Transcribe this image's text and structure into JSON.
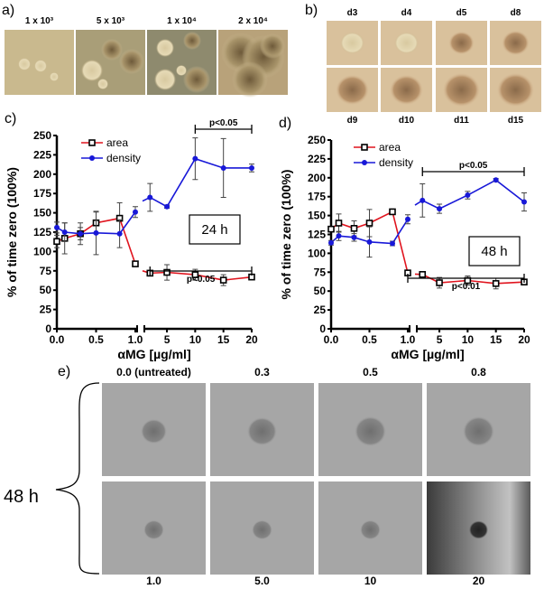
{
  "panel_a": {
    "label": "a)",
    "images": [
      "1 x 10³",
      "5 x 10³",
      "1 x 10⁴",
      "2 x 10⁴"
    ]
  },
  "panel_b": {
    "label": "b)",
    "images_top": [
      "d3",
      "d4",
      "d5",
      "d8"
    ],
    "images_bottom": [
      "d9",
      "d10",
      "d11",
      "d15"
    ]
  },
  "panel_e": {
    "label": "e)",
    "side_label": "48 h",
    "top_labels": [
      "0.0 (untreated)",
      "0.3",
      "0.5",
      "0.8"
    ],
    "bottom_labels": [
      "1.0",
      "5.0",
      "10",
      "20"
    ]
  },
  "colors": {
    "area": "#e0141e",
    "density": "#1818d8"
  },
  "chart_data": [
    {
      "type": "line",
      "panel_label": "c)",
      "box_label": "24 h",
      "xlabel": "αMG [µg/ml]",
      "ylabel": "% of time zero (100%)",
      "ylim": [
        0,
        250
      ],
      "yticks": [
        0,
        25,
        50,
        75,
        100,
        125,
        150,
        175,
        200,
        225,
        250
      ],
      "x_axis_broken": true,
      "xticks_left": [
        "0.0",
        "0.5",
        "1.0"
      ],
      "xticks_right": [
        "5",
        "10",
        "15",
        "20"
      ],
      "legend": "top-left",
      "x": [
        0,
        0.1,
        0.3,
        0.5,
        0.8,
        1.0,
        2,
        5,
        10,
        15,
        20
      ],
      "series": [
        {
          "name": "area",
          "marker": "square",
          "values": [
            113,
            117,
            123,
            137,
            143,
            84,
            72,
            73,
            70,
            63,
            67
          ],
          "error": [
            8,
            20,
            14,
            14,
            20,
            2,
            3,
            10,
            7,
            7,
            2
          ]
        },
        {
          "name": "density",
          "marker": "circle",
          "values": [
            131,
            125,
            123,
            124,
            123,
            151,
            170,
            158,
            220,
            208,
            208
          ],
          "error": [
            7,
            12,
            8,
            28,
            18,
            7,
            18,
            2,
            27,
            38,
            5
          ]
        }
      ],
      "significance": [
        {
          "label": "p<0.05",
          "from": 10,
          "to": 20,
          "series": "density"
        },
        {
          "label": "p<0.05",
          "from": 2,
          "to": 20,
          "series": "area"
        }
      ]
    },
    {
      "type": "line",
      "panel_label": "d)",
      "box_label": "48 h",
      "xlabel": "αMG [µg/ml]",
      "ylabel": "% of time zero (100%)",
      "ylim": [
        0,
        250
      ],
      "yticks": [
        0,
        25,
        50,
        75,
        100,
        125,
        150,
        175,
        200,
        225,
        250
      ],
      "x_axis_broken": true,
      "xticks_left": [
        "0.0",
        "0.5",
        "1.0"
      ],
      "xticks_right": [
        "5",
        "10",
        "15",
        "20"
      ],
      "legend": "top-left",
      "x": [
        0,
        0.1,
        0.3,
        0.5,
        0.8,
        1.0,
        2,
        5,
        10,
        15,
        20
      ],
      "series": [
        {
          "name": "area",
          "marker": "square",
          "values": [
            132,
            140,
            133,
            140,
            155,
            74,
            72,
            61,
            64,
            60,
            62
          ],
          "error": [
            3,
            12,
            10,
            18,
            2,
            2,
            2,
            7,
            6,
            7,
            2
          ]
        },
        {
          "name": "density",
          "marker": "circle",
          "values": [
            114,
            123,
            121,
            115,
            113,
            145,
            170,
            159,
            177,
            197,
            168
          ],
          "error": [
            3,
            6,
            5,
            20,
            3,
            6,
            22,
            6,
            5,
            2,
            12
          ]
        }
      ],
      "significance": [
        {
          "label": "p<0.05",
          "from": 2,
          "to": 20,
          "series": "density"
        },
        {
          "label": "p<0.01",
          "from": 1,
          "to": 20,
          "series": "area"
        }
      ]
    }
  ]
}
